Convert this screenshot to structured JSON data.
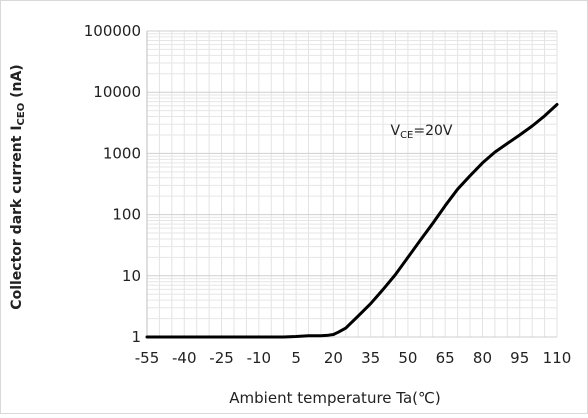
{
  "chart_data": {
    "type": "line",
    "yscale": "log",
    "ylim": [
      1,
      100000
    ],
    "xlim": [
      -55,
      110
    ],
    "x_ticks": [
      "-55",
      "-40",
      "-25",
      "-10",
      "5",
      "20",
      "35",
      "50",
      "65",
      "80",
      "95",
      "110"
    ],
    "y_ticks": [
      "1",
      "10",
      "100",
      "1000",
      "10000",
      "100000"
    ],
    "xlabel": "Ambient temperature Ta(℃)",
    "ylabel": {
      "main": "Collector dark current I",
      "sub": "CEO",
      "unit": " (nA)"
    },
    "annotation": {
      "main": "V",
      "sub": "CE",
      "value": "=20V",
      "x": 43,
      "y": 2000
    },
    "grid": true,
    "series": [
      {
        "color": "#000000",
        "x": [
          -55,
          -40,
          -25,
          -10,
          0,
          5,
          10,
          15,
          18,
          20,
          22,
          25,
          30,
          35,
          40,
          45,
          50,
          55,
          60,
          65,
          70,
          75,
          80,
          85,
          90,
          95,
          100,
          105,
          110
        ],
        "y": [
          1.0,
          1.0,
          1.0,
          1.0,
          1.0,
          1.02,
          1.05,
          1.05,
          1.07,
          1.1,
          1.2,
          1.4,
          2.2,
          3.5,
          6,
          10.5,
          20,
          38,
          72,
          140,
          260,
          430,
          700,
          1050,
          1450,
          2000,
          2800,
          4100,
          6300
        ]
      }
    ]
  }
}
